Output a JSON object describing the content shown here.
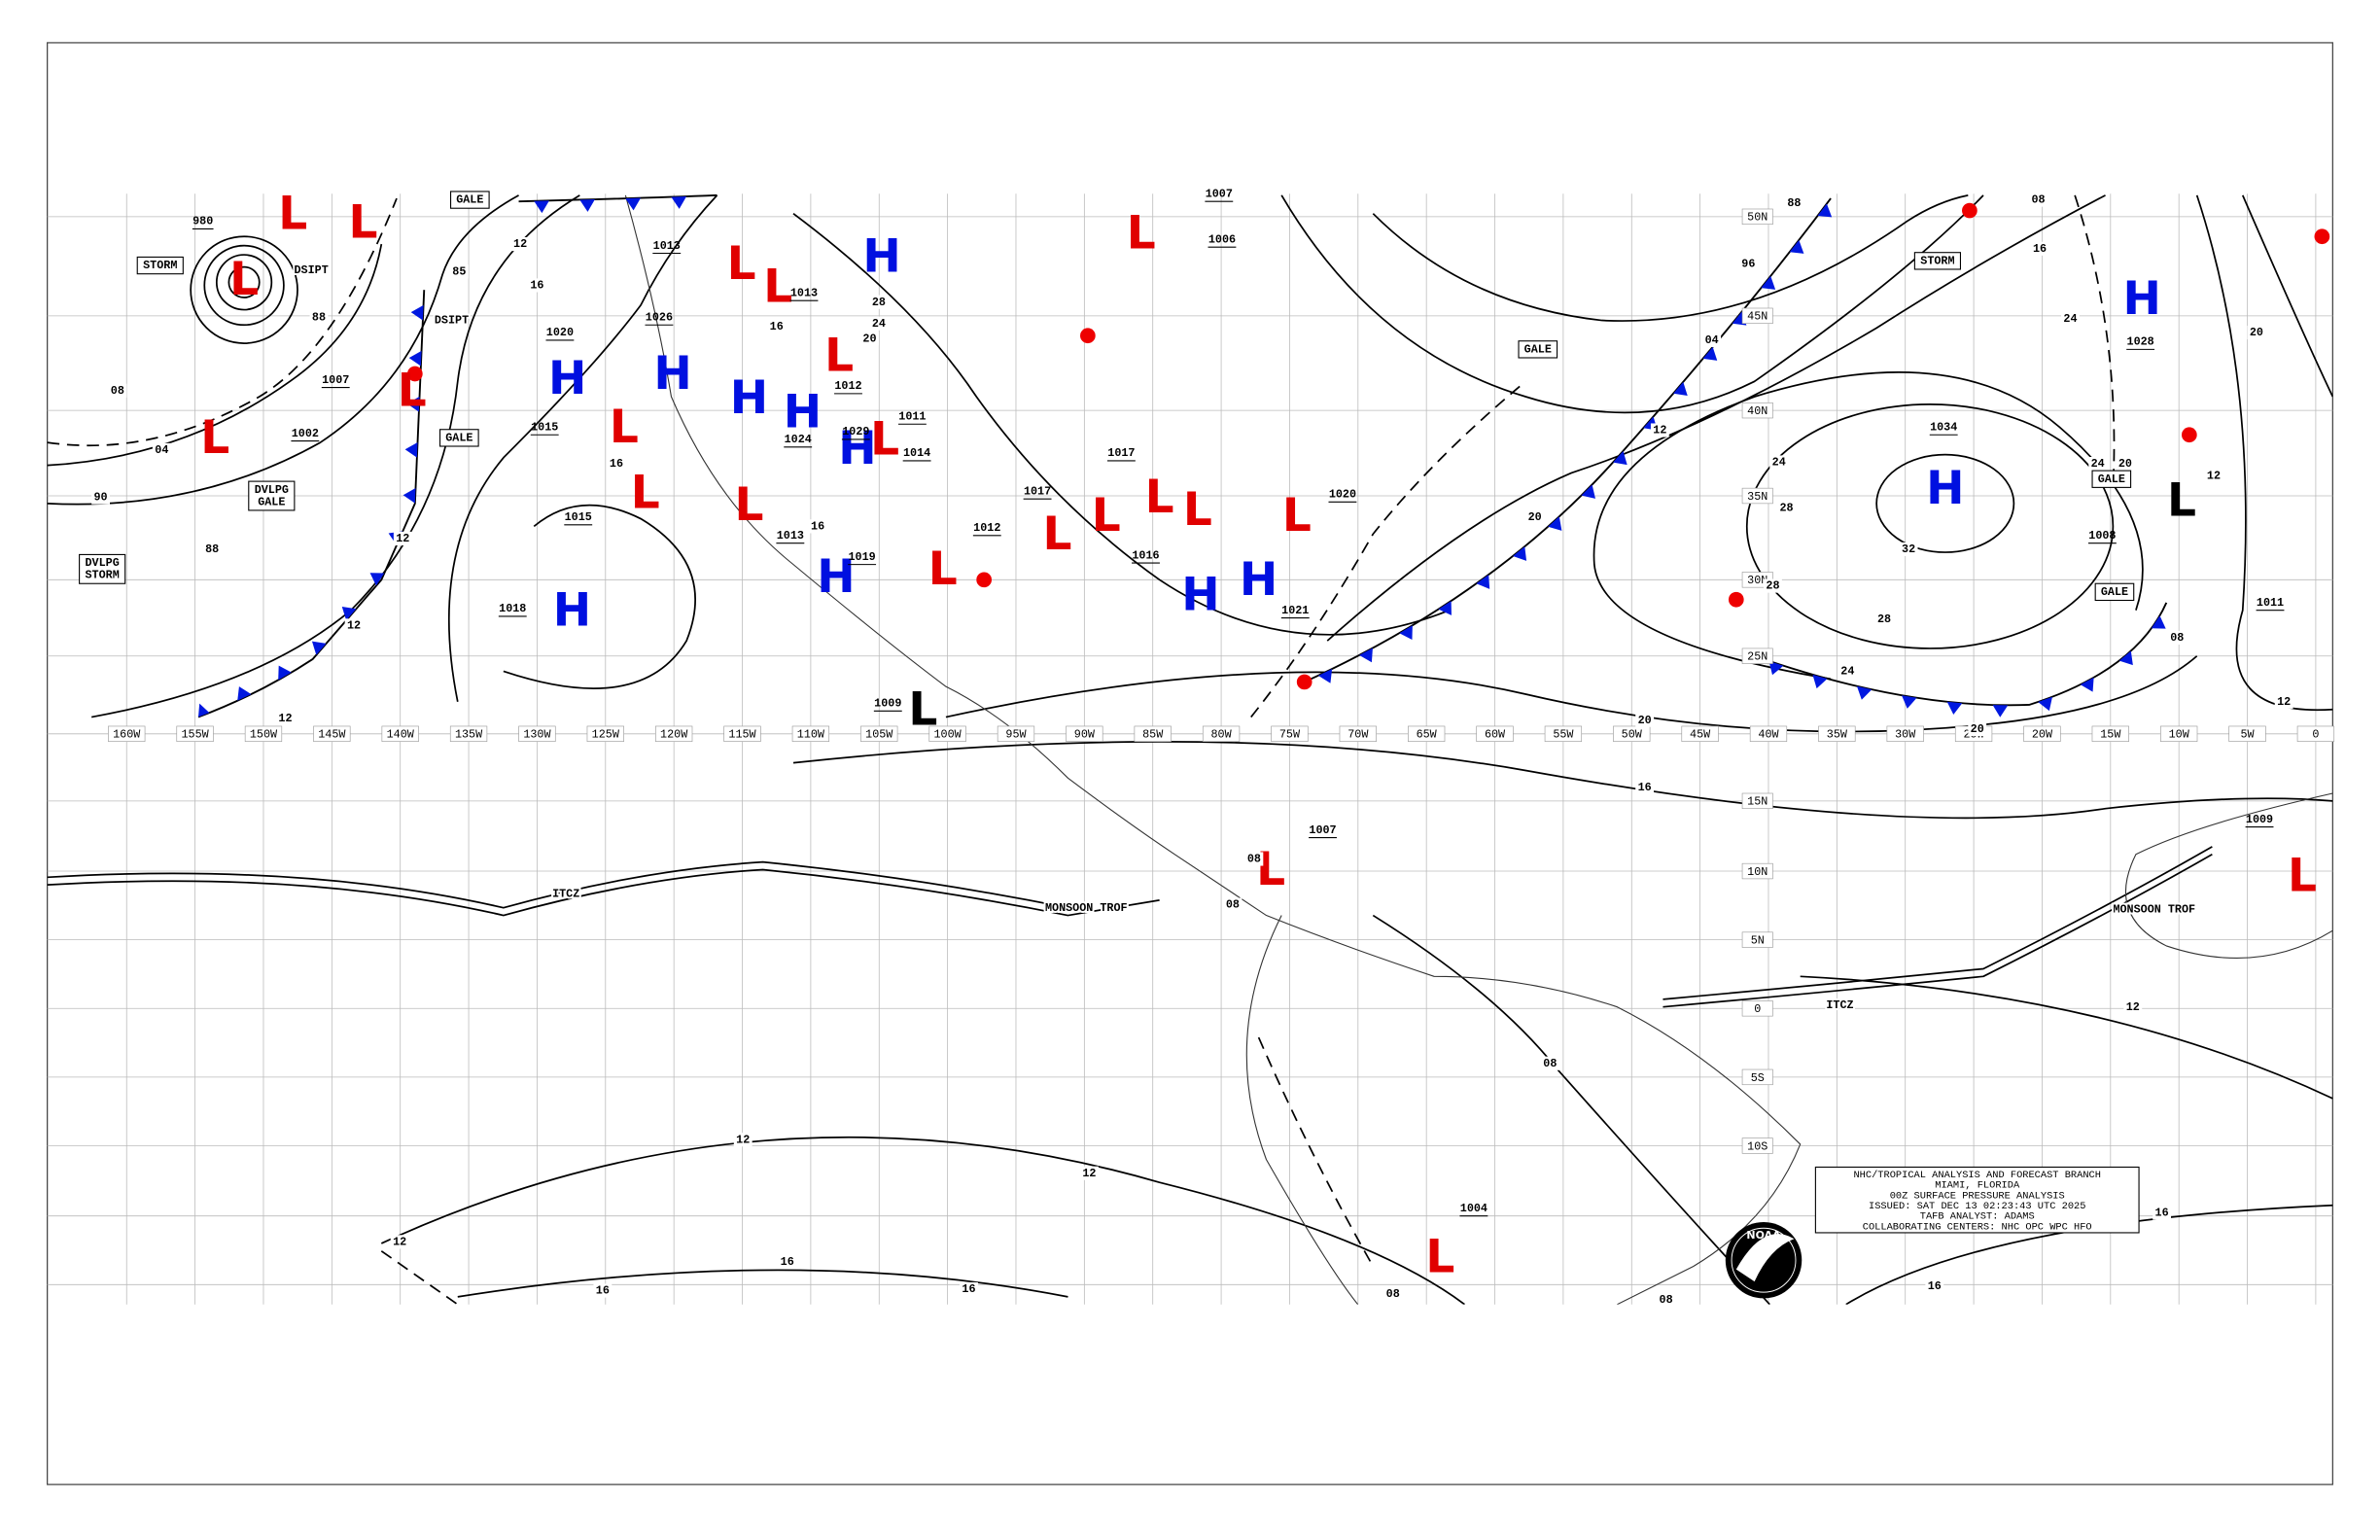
{
  "info_box": {
    "lines": [
      "NHC/TROPICAL ANALYSIS AND FORECAST BRANCH",
      "MIAMI, FLORIDA",
      "00Z SURFACE PRESSURE ANALYSIS",
      "ISSUED:  SAT DEC 13 02:23:43 UTC 2025",
      "TAFB ANALYST:  ADAMS",
      "COLLABORATING CENTERS:  NHC OPC WPC HFO"
    ]
  },
  "logo_text": "NOAA",
  "longitude_labels": [
    "160W",
    "155W",
    "150W",
    "145W",
    "140W",
    "135W",
    "130W",
    "125W",
    "120W",
    "115W",
    "110W",
    "105W",
    "100W",
    "95W",
    "90W",
    "85W",
    "80W",
    "75W",
    "70W",
    "65W",
    "60W",
    "55W",
    "50W",
    "45W",
    "40W",
    "35W",
    "30W",
    "25W",
    "20W",
    "15W",
    "10W",
    "5W",
    "0"
  ],
  "latitude_labels": [
    "50N",
    "45N",
    "40N",
    "35N",
    "30N",
    "25N",
    "15N",
    "10N",
    "5N",
    "0",
    "5S",
    "10S"
  ],
  "pressure_centers": [
    {
      "letter": "L",
      "color": "#e00000"
    },
    {
      "letter": "L",
      "color": "#e00000"
    },
    {
      "letter": "L",
      "color": "#e00000"
    },
    {
      "letter": "L",
      "color": "#e00000"
    },
    {
      "letter": "L",
      "color": "#e00000"
    },
    {
      "letter": "H",
      "color": "#0010e0"
    },
    {
      "letter": "H",
      "color": "#0010e0"
    },
    {
      "letter": "L",
      "color": "#e00000"
    },
    {
      "letter": "L",
      "color": "#e00000"
    },
    {
      "letter": "L",
      "color": "#e00000"
    },
    {
      "letter": "H",
      "color": "#0010e0"
    },
    {
      "letter": "H",
      "color": "#0010e0"
    },
    {
      "letter": "H",
      "color": "#0010e0"
    },
    {
      "letter": "H",
      "color": "#0010e0"
    },
    {
      "letter": "L",
      "color": "#e00000"
    },
    {
      "letter": "L",
      "color": "#e00000"
    },
    {
      "letter": "L",
      "color": "#e00000"
    },
    {
      "letter": "L",
      "color": "#e00000"
    },
    {
      "letter": "H",
      "color": "#0010e0"
    },
    {
      "letter": "L",
      "color": "#e00000"
    },
    {
      "letter": "H",
      "color": "#0010e0"
    },
    {
      "letter": "L",
      "color": "#e00000"
    },
    {
      "letter": "L",
      "color": "#e00000"
    },
    {
      "letter": "L",
      "color": "#e00000"
    },
    {
      "letter": "L",
      "color": "#e00000"
    },
    {
      "letter": "L",
      "color": "#e00000"
    },
    {
      "letter": "H",
      "color": "#0010e0"
    },
    {
      "letter": "H",
      "color": "#0010e0"
    },
    {
      "letter": "L",
      "color": "#e00000"
    },
    {
      "letter": "L",
      "color": "#000000"
    },
    {
      "letter": "L",
      "color": "#e00000"
    },
    {
      "letter": "L",
      "color": "#e00000"
    },
    {
      "letter": "H",
      "color": "#0010e0"
    },
    {
      "letter": "H",
      "color": "#0010e0"
    },
    {
      "letter": "L",
      "color": "#000000"
    },
    {
      "letter": "L",
      "color": "#e00000"
    }
  ],
  "pressure_labels": [
    "980",
    "1007",
    "1002",
    "1020",
    "1015",
    "1015",
    "1018",
    "1026",
    "1013",
    "1013",
    "1012",
    "1011",
    "1014",
    "1024",
    "1029",
    "1013",
    "1019",
    "1012",
    "1017",
    "1017",
    "1016",
    "1006",
    "1007",
    "1020",
    "1021",
    "1009",
    "1007",
    "1004",
    "1034",
    "1028",
    "1008",
    "1011",
    "1009"
  ],
  "isobar_labels": [
    "08",
    "04",
    "90",
    "88",
    "88",
    "85",
    "12",
    "16",
    "12",
    "12",
    "12",
    "16",
    "28",
    "24",
    "20",
    "16",
    "16",
    "96",
    "04",
    "12",
    "88",
    "08",
    "16",
    "24",
    "20",
    "24",
    "28",
    "32",
    "28",
    "28",
    "24",
    "20",
    "20",
    "16",
    "12",
    "08",
    "12",
    "12",
    "12",
    "16",
    "16",
    "16",
    "16",
    "16",
    "08",
    "08",
    "08",
    "08",
    "20",
    "24",
    "20",
    "12",
    "08",
    "12"
  ],
  "boxed_labels": [
    [
      "STORM"
    ],
    [
      "GALE"
    ],
    [
      "GALE"
    ],
    [
      "DVLPG",
      "GALE"
    ],
    [
      "DVLPG",
      "STORM"
    ],
    [
      "STORM"
    ],
    [
      "GALE"
    ],
    [
      "GALE"
    ],
    [
      "GALE"
    ]
  ],
  "feature_labels": [
    "DSIPT",
    "DSIPT",
    "ITCZ",
    "MONSOON TROF",
    "ITCZ",
    "MONSOON TROF"
  ]
}
